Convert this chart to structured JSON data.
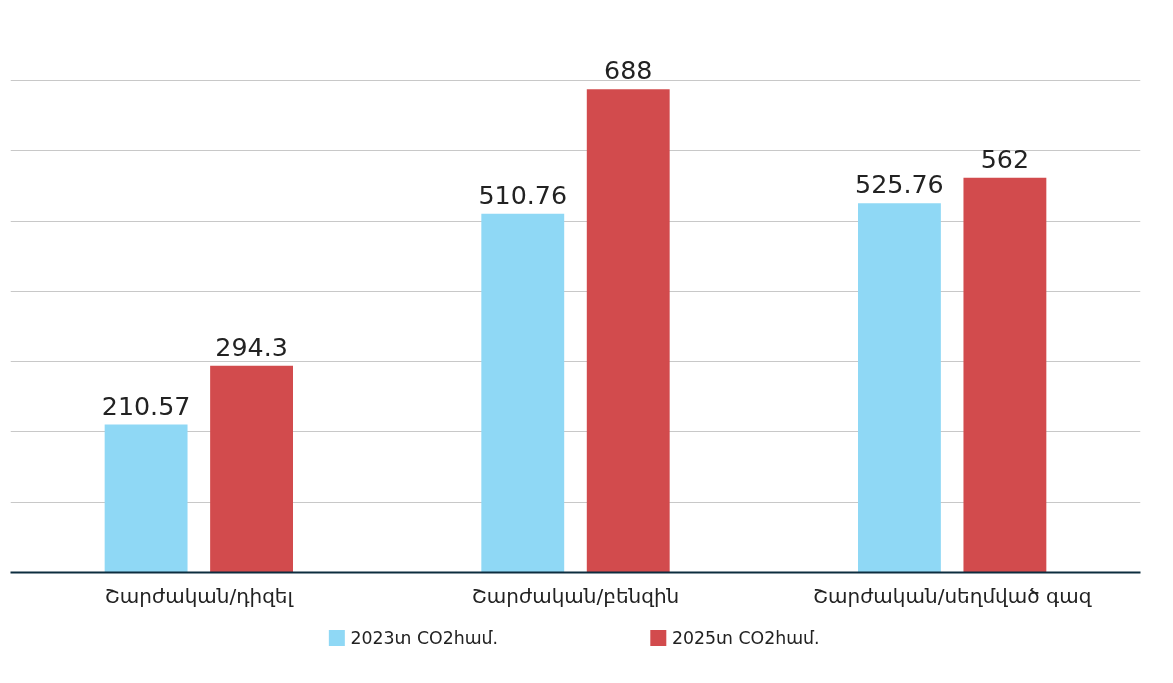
{
  "chart_data": {
    "type": "bar",
    "categories": [
      "Շարժական/դիզել",
      "Շարժական/բենզին",
      "Շարժական/սեղմված գազ"
    ],
    "series": [
      {
        "name": "2023տ CO2համ.",
        "color": "#8fd8f5",
        "values": [
          210.57,
          510.76,
          525.76
        ]
      },
      {
        "name": "2025տ CO2համ.",
        "color": "#d24b4d",
        "values": [
          294.3,
          688,
          562
        ]
      }
    ],
    "tick_labels": "x",
    "grid": "y",
    "data_labels": true,
    "legend": "bottom"
  }
}
